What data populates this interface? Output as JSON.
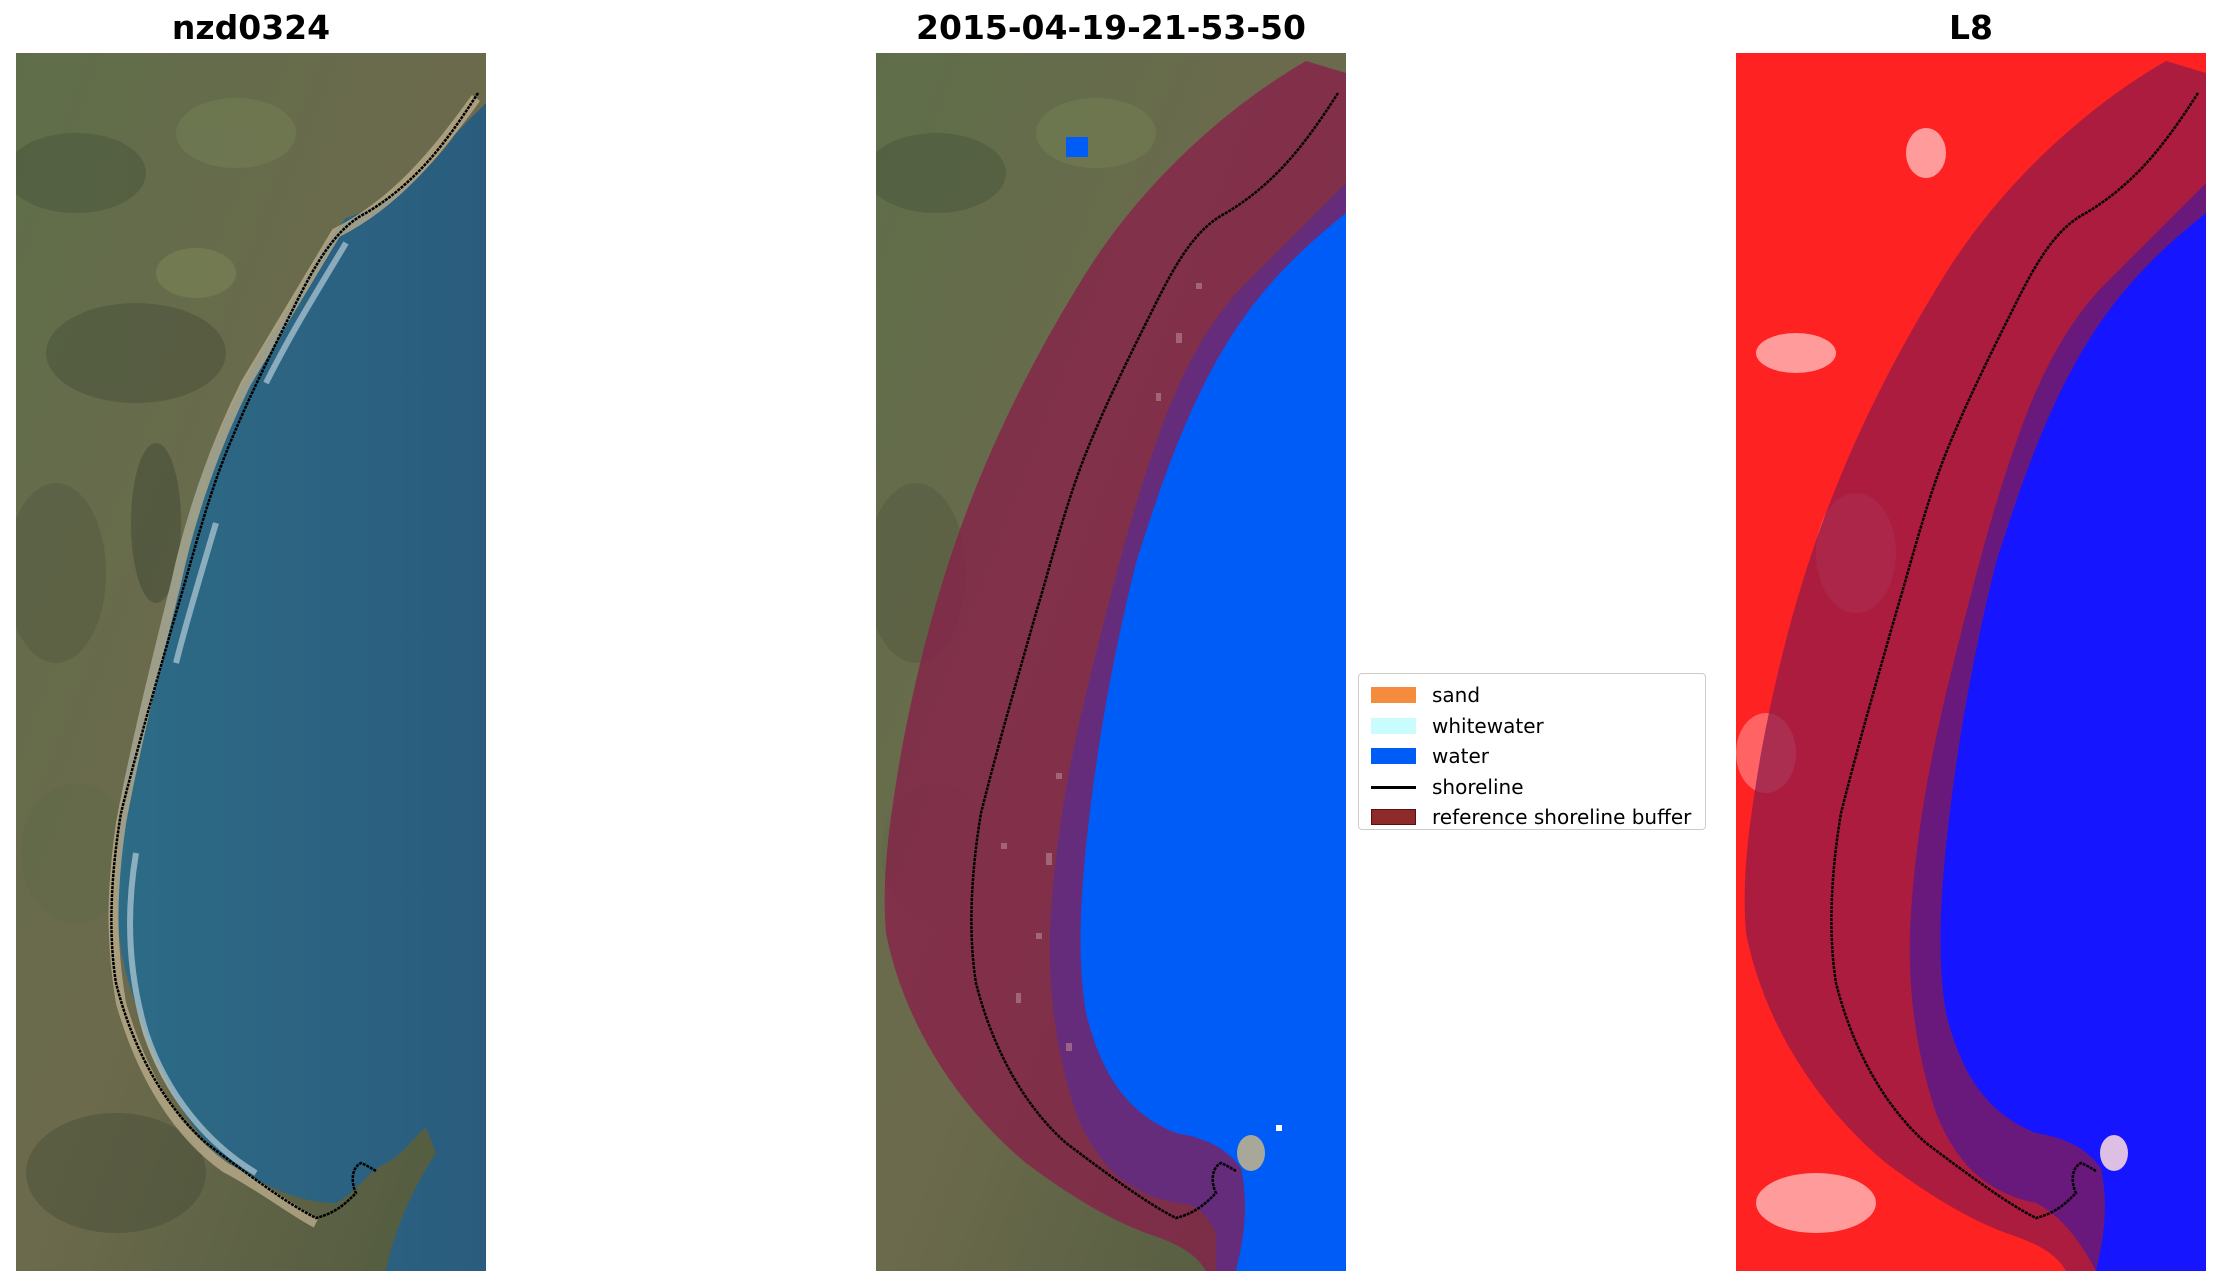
{
  "panels": {
    "rgb": {
      "title": "nzd0324"
    },
    "classified": {
      "title": "2015-04-19-21-53-50"
    },
    "index": {
      "title": "L8"
    }
  },
  "legend": {
    "items": [
      {
        "label": "sand",
        "color": "#f58b3c",
        "kind": "patch"
      },
      {
        "label": "whitewater",
        "color": "#c9fcfc",
        "kind": "patch"
      },
      {
        "label": "water",
        "color": "#005cf7",
        "kind": "patch"
      },
      {
        "label": "shoreline",
        "color": "#000000",
        "kind": "line"
      },
      {
        "label": "reference shoreline buffer",
        "color": "#8f2a2a",
        "edge": "#5a1010",
        "kind": "patch"
      }
    ]
  },
  "colors": {
    "water_class": "#005cf7",
    "buffer_overlay": "#8b1a4a",
    "index_land": "#ff2020",
    "index_water": "#1515ff"
  }
}
